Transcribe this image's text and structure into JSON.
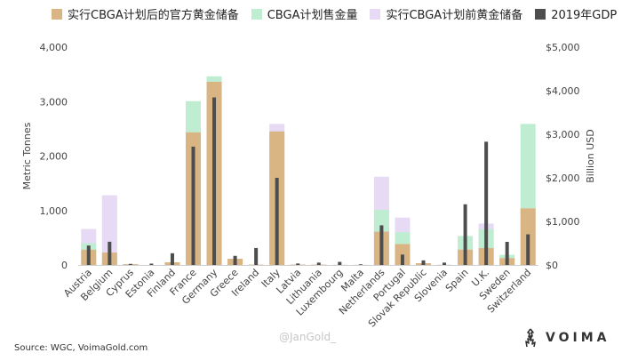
{
  "chart_data": {
    "type": "bar",
    "legend": {
      "placement": "top",
      "entries": [
        {
          "name": "实行CBGA计划后的官方黄金储备",
          "color": "#D9B584"
        },
        {
          "name": "CBGA计划售金量",
          "color": "#BFEDD2"
        },
        {
          "name": "实行CBGA计划前黄金储备",
          "color": "#E6DAF5"
        },
        {
          "name": "2019年GDP",
          "color": "#4D4D4D"
        }
      ]
    },
    "categories": [
      "Austria",
      "Belgium",
      "Cyprus",
      "Estonia",
      "Finland",
      "France",
      "Germany",
      "Greece",
      "Ireland",
      "Italy",
      "Latvia",
      "Lithuania",
      "Luxembourg",
      "Malta",
      "Netherlands",
      "Portugal",
      "Slovak Republic",
      "Slovenia",
      "Spain",
      "U.K.",
      "Sweden",
      "Switzerland"
    ],
    "series": [
      {
        "name": "实行CBGA计划后的官方黄金储备",
        "axis": "left",
        "values": [
          280,
          227,
          14,
          0,
          49,
          2436,
          3364,
          114,
          6,
          2452,
          7,
          6,
          2,
          2,
          612,
          383,
          32,
          3,
          282,
          310,
          126,
          1040
        ]
      },
      {
        "name": "CBGA计划售金量",
        "axis": "left",
        "values": [
          120,
          0,
          0,
          0,
          0,
          572,
          100,
          0,
          0,
          0,
          0,
          0,
          0,
          0,
          400,
          220,
          0,
          0,
          250,
          350,
          60,
          1550
        ]
      },
      {
        "name": "实行CBGA计划前黄金储备",
        "axis": "left",
        "values": [
          660,
          1280,
          14,
          0,
          49,
          2436,
          3364,
          114,
          6,
          2590,
          7,
          6,
          2,
          2,
          1620,
          870,
          32,
          3,
          282,
          760,
          126,
          1040
        ]
      },
      {
        "name": "2019年GDP",
        "axis": "right",
        "values": [
          446,
          533,
          25,
          31,
          269,
          2716,
          3846,
          209,
          389,
          2001,
          34,
          54,
          71,
          15,
          910,
          239,
          105,
          54,
          1393,
          2829,
          531,
          703
        ]
      }
    ],
    "ylabel": "Metric Tonnes",
    "y2label": "Billion USD",
    "ylim": [
      0,
      4000
    ],
    "y2lim": [
      0,
      5000
    ],
    "yticks": [
      "0",
      "1,000",
      "2,000",
      "3,000",
      "4,000"
    ],
    "y2ticks": [
      "$0",
      "$1,000",
      "$2,000",
      "$3,000",
      "$4,000",
      "$5,000"
    ],
    "grid": false
  },
  "source": "Source: WGC, VoimaGold.com",
  "watermark": "@JanGold_",
  "brand": {
    "name": "VOIMA"
  }
}
